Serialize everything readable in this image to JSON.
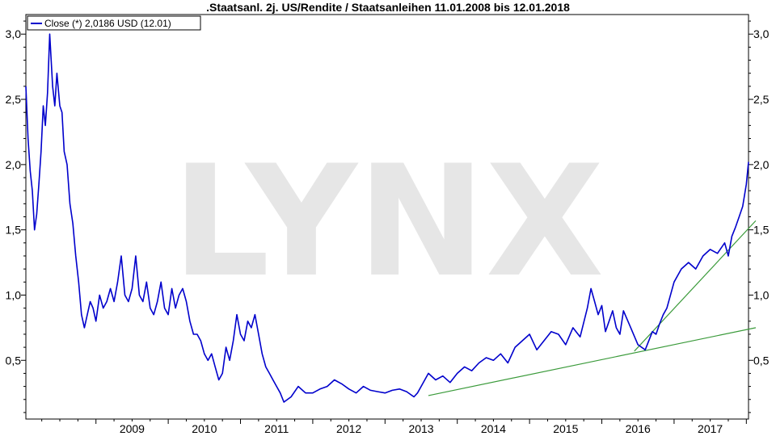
{
  "chart_data": {
    "type": "line",
    "title": ".Staatsanl. 2j. US/Rendite / Staatsanleihen 11.01.2008 bis 12.01.2018",
    "watermark": "LYNX",
    "legend": {
      "label": "Close (*) 2,0186 USD (12.01)",
      "placement": "top-left"
    },
    "x_range": [
      2008.03,
      2018.03
    ],
    "ylim": [
      0.05,
      3.15
    ],
    "x_ticks": [
      "2009",
      "2010",
      "2011",
      "2012",
      "2013",
      "2014",
      "2015",
      "2016",
      "2017"
    ],
    "y_ticks": [
      "0,5",
      "1,0",
      "1,5",
      "2,0",
      "2,5",
      "3,0"
    ],
    "grid": false,
    "colors": {
      "series": "#0000cc",
      "trendline": "#3a9a3a",
      "watermark": "#e6e6e6"
    },
    "series": [
      {
        "x": [
          2008.03,
          2008.06,
          2008.09,
          2008.12,
          2008.15,
          2008.18,
          2008.21,
          2008.24,
          2008.27,
          2008.3,
          2008.33,
          2008.36,
          2008.4,
          2008.43,
          2008.46,
          2008.5,
          2008.53,
          2008.56,
          2008.6,
          2008.64,
          2008.68,
          2008.72,
          2008.76,
          2008.8,
          2008.84,
          2008.88,
          2008.92,
          2008.96,
          2009.0,
          2009.05,
          2009.1,
          2009.15,
          2009.2,
          2009.25,
          2009.3,
          2009.35,
          2009.4,
          2009.45,
          2009.5,
          2009.55,
          2009.6,
          2009.65,
          2009.7,
          2009.75,
          2009.8,
          2009.85,
          2009.9,
          2009.95,
          2010.0,
          2010.05,
          2010.1,
          2010.15,
          2010.2,
          2010.25,
          2010.3,
          2010.35,
          2010.4,
          2010.45,
          2010.5,
          2010.55,
          2010.6,
          2010.65,
          2010.7,
          2010.75,
          2010.8,
          2010.85,
          2010.9,
          2010.95,
          2011.0,
          2011.05,
          2011.1,
          2011.15,
          2011.2,
          2011.25,
          2011.3,
          2011.35,
          2011.4,
          2011.45,
          2011.5,
          2011.55,
          2011.6,
          2011.7,
          2011.8,
          2011.9,
          2012.0,
          2012.1,
          2012.2,
          2012.3,
          2012.4,
          2012.5,
          2012.6,
          2012.7,
          2012.8,
          2012.9,
          2013.0,
          2013.1,
          2013.2,
          2013.3,
          2013.4,
          2013.45,
          2013.5,
          2013.55,
          2013.6,
          2013.7,
          2013.8,
          2013.9,
          2014.0,
          2014.1,
          2014.2,
          2014.3,
          2014.4,
          2014.5,
          2014.6,
          2014.7,
          2014.8,
          2014.9,
          2015.0,
          2015.1,
          2015.2,
          2015.3,
          2015.4,
          2015.5,
          2015.6,
          2015.7,
          2015.8,
          2015.85,
          2015.9,
          2015.95,
          2016.0,
          2016.05,
          2016.1,
          2016.15,
          2016.2,
          2016.25,
          2016.3,
          2016.4,
          2016.5,
          2016.6,
          2016.7,
          2016.75,
          2016.8,
          2016.85,
          2016.9,
          2017.0,
          2017.1,
          2017.2,
          2017.3,
          2017.4,
          2017.5,
          2017.6,
          2017.7,
          2017.75,
          2017.8,
          2017.85,
          2017.9,
          2017.95,
          2018.0,
          2018.03
        ],
        "values": [
          2.6,
          2.2,
          1.95,
          1.8,
          1.5,
          1.62,
          1.85,
          2.1,
          2.45,
          2.3,
          2.55,
          3.0,
          2.6,
          2.45,
          2.7,
          2.45,
          2.4,
          2.1,
          2.0,
          1.7,
          1.55,
          1.3,
          1.1,
          0.85,
          0.75,
          0.85,
          0.95,
          0.9,
          0.8,
          1.0,
          0.9,
          0.95,
          1.05,
          0.95,
          1.1,
          1.3,
          1.0,
          0.95,
          1.05,
          1.3,
          1.0,
          0.95,
          1.1,
          0.9,
          0.85,
          0.95,
          1.1,
          0.9,
          0.85,
          1.05,
          0.9,
          1.0,
          1.05,
          0.95,
          0.8,
          0.7,
          0.7,
          0.65,
          0.55,
          0.5,
          0.55,
          0.45,
          0.35,
          0.4,
          0.6,
          0.5,
          0.65,
          0.85,
          0.7,
          0.65,
          0.8,
          0.75,
          0.85,
          0.7,
          0.55,
          0.45,
          0.4,
          0.35,
          0.3,
          0.25,
          0.18,
          0.22,
          0.3,
          0.25,
          0.25,
          0.28,
          0.3,
          0.35,
          0.32,
          0.28,
          0.25,
          0.3,
          0.27,
          0.26,
          0.25,
          0.27,
          0.28,
          0.26,
          0.22,
          0.25,
          0.3,
          0.35,
          0.4,
          0.35,
          0.38,
          0.33,
          0.4,
          0.45,
          0.42,
          0.48,
          0.52,
          0.5,
          0.55,
          0.48,
          0.6,
          0.65,
          0.7,
          0.58,
          0.65,
          0.72,
          0.7,
          0.62,
          0.75,
          0.68,
          0.9,
          1.05,
          0.95,
          0.85,
          0.92,
          0.72,
          0.8,
          0.88,
          0.75,
          0.7,
          0.88,
          0.75,
          0.62,
          0.58,
          0.72,
          0.7,
          0.78,
          0.85,
          0.9,
          1.1,
          1.2,
          1.25,
          1.2,
          1.3,
          1.35,
          1.32,
          1.4,
          1.3,
          1.45,
          1.52,
          1.6,
          1.68,
          1.85,
          2.02
        ]
      }
    ],
    "trendlines": [
      {
        "x": [
          2013.6,
          2018.13
        ],
        "values": [
          0.23,
          0.75
        ]
      },
      {
        "x": [
          2016.45,
          2018.13
        ],
        "values": [
          0.57,
          1.57
        ]
      }
    ]
  }
}
